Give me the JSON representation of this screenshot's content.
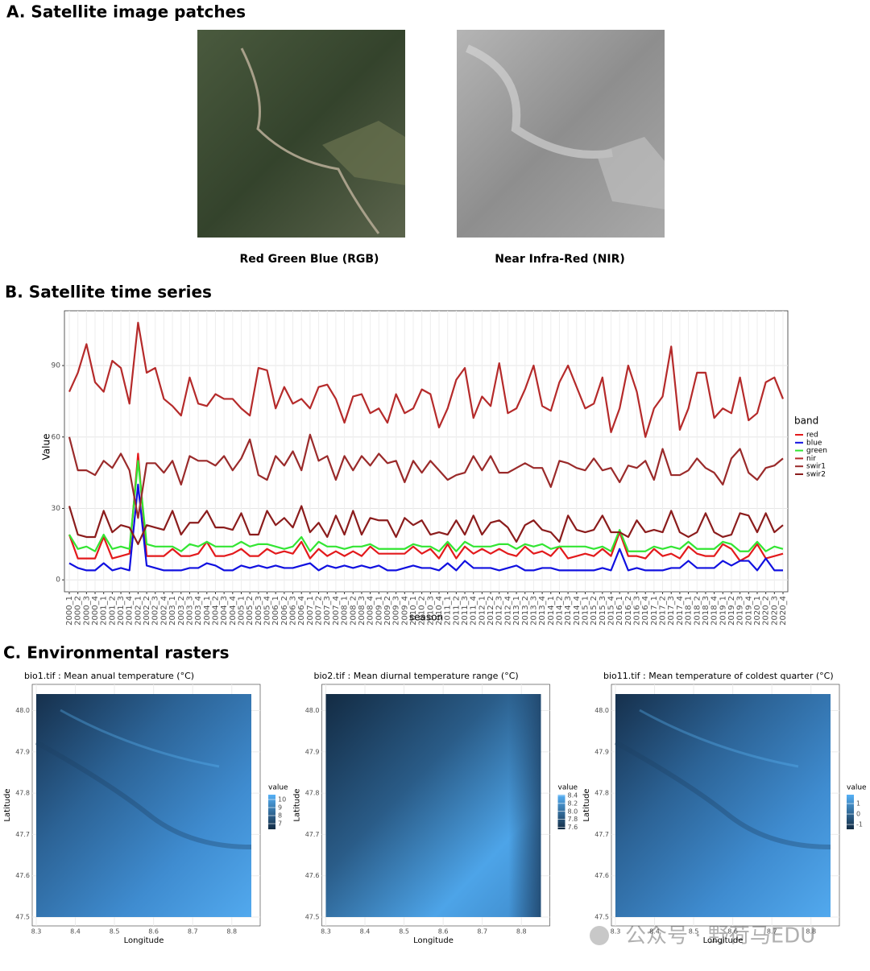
{
  "panel_a": {
    "title": "A. Satellite image patches",
    "images": [
      {
        "caption": "Red Green Blue (RGB)"
      },
      {
        "caption": "Near Infra-Red (NIR)"
      }
    ]
  },
  "chart_data": {
    "type": "line",
    "title": "B. Satellite time series",
    "x_label": "season",
    "y_label": "Value",
    "legend_title": "band",
    "legend_position": "right",
    "grid": true,
    "ylim": [
      -5,
      113
    ],
    "yticks": [
      0,
      30,
      60,
      90
    ],
    "categories": [
      "2000_1",
      "2000_2",
      "2000_3",
      "2000_4",
      "2001_1",
      "2001_2",
      "2001_3",
      "2001_4",
      "2002_1",
      "2002_2",
      "2002_3",
      "2002_4",
      "2003_1",
      "2003_2",
      "2003_3",
      "2003_4",
      "2004_1",
      "2004_2",
      "2004_3",
      "2004_4",
      "2005_1",
      "2005_2",
      "2005_3",
      "2005_4",
      "2006_1",
      "2006_2",
      "2006_3",
      "2006_4",
      "2007_1",
      "2007_2",
      "2007_3",
      "2007_4",
      "2008_1",
      "2008_2",
      "2008_3",
      "2008_4",
      "2009_1",
      "2009_2",
      "2009_3",
      "2009_4",
      "2010_1",
      "2010_2",
      "2010_3",
      "2010_4",
      "2011_1",
      "2011_2",
      "2011_3",
      "2011_4",
      "2012_1",
      "2012_2",
      "2012_3",
      "2012_4",
      "2013_1",
      "2013_2",
      "2013_3",
      "2013_4",
      "2014_1",
      "2014_2",
      "2014_3",
      "2014_4",
      "2015_1",
      "2015_2",
      "2015_3",
      "2015_4",
      "2016_1",
      "2016_2",
      "2016_3",
      "2016_4",
      "2017_1",
      "2017_2",
      "2017_3",
      "2017_4",
      "2018_1",
      "2018_2",
      "2018_3",
      "2018_4",
      "2019_1",
      "2019_2",
      "2019_3",
      "2019_4",
      "2020_1",
      "2020_2",
      "2020_3",
      "2020_4"
    ],
    "series": [
      {
        "name": "red",
        "color": "#e31a1c",
        "values": [
          19,
          9,
          9,
          9,
          18,
          9,
          10,
          11,
          53,
          10,
          10,
          10,
          13,
          10,
          10,
          11,
          16,
          10,
          10,
          11,
          13,
          10,
          10,
          13,
          11,
          12,
          11,
          16,
          9,
          13,
          10,
          12,
          10,
          12,
          10,
          14,
          11,
          11,
          11,
          11,
          14,
          11,
          13,
          9,
          15,
          9,
          14,
          11,
          13,
          11,
          13,
          11,
          10,
          14,
          11,
          12,
          10,
          14,
          9,
          10,
          11,
          10,
          13,
          10,
          20,
          10,
          10,
          9,
          13,
          10,
          11,
          9,
          14,
          11,
          10,
          10,
          15,
          13,
          8,
          10,
          15,
          9,
          10,
          11
        ]
      },
      {
        "name": "blue",
        "color": "#1010e0",
        "values": [
          7,
          5,
          4,
          4,
          7,
          4,
          5,
          4,
          40,
          6,
          5,
          4,
          4,
          4,
          5,
          5,
          7,
          6,
          4,
          4,
          6,
          5,
          6,
          5,
          6,
          5,
          5,
          6,
          7,
          4,
          6,
          5,
          6,
          5,
          6,
          5,
          6,
          4,
          4,
          5,
          6,
          5,
          5,
          4,
          7,
          4,
          8,
          5,
          5,
          5,
          4,
          5,
          6,
          4,
          4,
          5,
          5,
          4,
          4,
          4,
          4,
          4,
          5,
          4,
          13,
          4,
          5,
          4,
          4,
          4,
          5,
          5,
          8,
          5,
          5,
          5,
          8,
          6,
          8,
          8,
          4,
          9,
          4,
          4
        ]
      },
      {
        "name": "green",
        "color": "#33e533",
        "values": [
          19,
          13,
          14,
          12,
          19,
          13,
          14,
          13,
          50,
          15,
          14,
          14,
          14,
          12,
          15,
          14,
          16,
          14,
          14,
          14,
          16,
          14,
          15,
          15,
          14,
          13,
          14,
          18,
          12,
          16,
          14,
          14,
          13,
          14,
          14,
          15,
          13,
          13,
          13,
          13,
          15,
          14,
          14,
          12,
          16,
          12,
          16,
          14,
          14,
          14,
          15,
          15,
          13,
          15,
          14,
          15,
          13,
          14,
          14,
          14,
          14,
          13,
          14,
          12,
          21,
          12,
          12,
          12,
          14,
          13,
          14,
          13,
          16,
          13,
          13,
          13,
          16,
          15,
          12,
          12,
          16,
          12,
          14,
          13
        ]
      },
      {
        "name": "nir",
        "color": "#b52a2a",
        "values": [
          79,
          87,
          99,
          83,
          79,
          92,
          89,
          74,
          108,
          87,
          89,
          76,
          73,
          69,
          85,
          74,
          73,
          78,
          76,
          76,
          72,
          69,
          89,
          88,
          72,
          81,
          74,
          76,
          72,
          81,
          82,
          76,
          66,
          77,
          78,
          70,
          72,
          66,
          78,
          70,
          72,
          80,
          78,
          64,
          72,
          84,
          89,
          68,
          77,
          73,
          91,
          70,
          72,
          80,
          90,
          73,
          71,
          83,
          90,
          81,
          72,
          74,
          85,
          62,
          72,
          90,
          79,
          60,
          72,
          77,
          98,
          63,
          72,
          87,
          87,
          68,
          72,
          70,
          85,
          67,
          70,
          83,
          85,
          76
        ]
      },
      {
        "name": "swir1",
        "color": "#9a2a2a",
        "values": [
          60,
          46,
          46,
          44,
          50,
          47,
          53,
          46,
          26,
          49,
          49,
          45,
          50,
          40,
          52,
          50,
          50,
          48,
          52,
          46,
          51,
          59,
          44,
          42,
          52,
          48,
          54,
          46,
          61,
          50,
          52,
          42,
          52,
          46,
          52,
          48,
          53,
          49,
          50,
          41,
          50,
          45,
          50,
          46,
          42,
          44,
          45,
          52,
          46,
          52,
          45,
          45,
          47,
          49,
          47,
          47,
          39,
          50,
          49,
          47,
          46,
          51,
          46,
          47,
          41,
          48,
          47,
          50,
          42,
          55,
          44,
          44,
          46,
          51,
          47,
          45,
          40,
          51,
          55,
          45,
          42,
          47,
          48,
          51
        ]
      },
      {
        "name": "swir2",
        "color": "#8b1c1c",
        "values": [
          31,
          19,
          18,
          18,
          29,
          20,
          23,
          22,
          15,
          23,
          22,
          21,
          29,
          19,
          24,
          24,
          29,
          22,
          22,
          21,
          28,
          19,
          19,
          29,
          23,
          26,
          22,
          31,
          20,
          24,
          18,
          27,
          19,
          29,
          19,
          26,
          25,
          25,
          18,
          26,
          23,
          25,
          19,
          20,
          19,
          25,
          19,
          27,
          19,
          24,
          25,
          22,
          16,
          23,
          25,
          21,
          20,
          16,
          27,
          21,
          20,
          21,
          27,
          20,
          20,
          18,
          25,
          20,
          21,
          20,
          29,
          20,
          18,
          20,
          28,
          20,
          18,
          19,
          28,
          27,
          20,
          28,
          20,
          23
        ]
      }
    ]
  },
  "panel_c": {
    "title": "C. Environmental rasters",
    "maps": [
      {
        "title": "bio1.tif : Mean anual temperature (°C)",
        "x_label": "Longitude",
        "y_label": "Latitude",
        "xlim": [
          8.3,
          8.85
        ],
        "ylim": [
          47.5,
          48.04
        ],
        "xticks": [
          8.3,
          8.4,
          8.5,
          8.6,
          8.7,
          8.8
        ],
        "yticks": [
          {
            "value": 47.5,
            "label": "47.5"
          },
          47.6,
          47.7,
          47.8,
          47.9,
          {
            "value": 48,
            "label": "48.0"
          }
        ],
        "legend_title": "value",
        "colorbar_lim": [
          6.3,
          10.6
        ],
        "colorbar_ticks": [
          10,
          9,
          8,
          7
        ]
      },
      {
        "title": "bio2.tif : Mean diurnal temperature range (°C)",
        "x_label": "Longitude",
        "y_label": "Latitude",
        "xlim": [
          8.3,
          8.85
        ],
        "ylim": [
          47.5,
          48.04
        ],
        "xticks": [
          8.3,
          8.4,
          8.5,
          8.6,
          8.7,
          8.8
        ],
        "yticks": [
          {
            "value": 47.5,
            "label": "47.5"
          },
          47.6,
          47.7,
          47.8,
          47.9,
          {
            "value": 48,
            "label": "48.0"
          }
        ],
        "legend_title": "value",
        "colorbar_lim": [
          7.55,
          8.42
        ],
        "colorbar_ticks": [
          8.4,
          8.2,
          {
            "value": 8,
            "label": "8.0"
          },
          7.8,
          7.6
        ]
      },
      {
        "title": "bio11.tif : Mean temperature of coldest quarter (°C)",
        "x_label": "Longitude",
        "y_label": "Latitude",
        "xlim": [
          8.3,
          8.85
        ],
        "ylim": [
          47.5,
          48.04
        ],
        "xticks": [
          8.3,
          8.4,
          8.5,
          8.6,
          8.7,
          8.8
        ],
        "yticks": [
          {
            "value": 47.5,
            "label": "47.5"
          },
          47.6,
          47.7,
          47.8,
          47.9,
          {
            "value": 48,
            "label": "48.0"
          }
        ],
        "legend_title": "value",
        "colorbar_lim": [
          -1.46,
          1.85
        ],
        "colorbar_ticks": [
          1,
          0,
          -1
        ]
      }
    ]
  },
  "watermark": "公众号 · 野荷马EDU"
}
